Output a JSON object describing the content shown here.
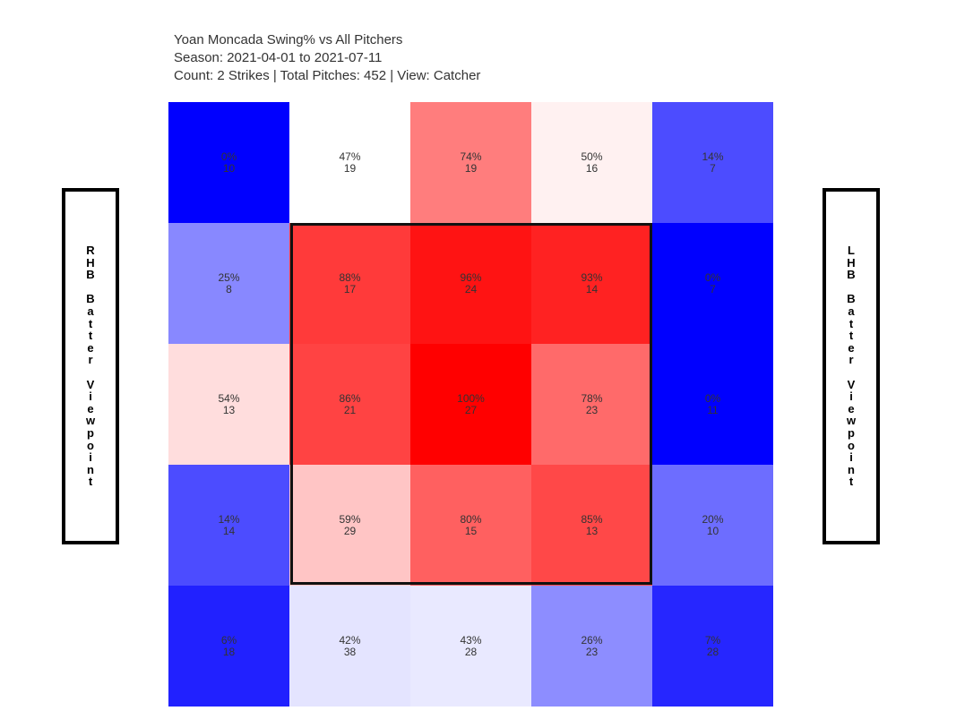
{
  "header": {
    "line1": "Yoan Moncada Swing% vs All Pitchers",
    "line2": "Season: 2021-04-01 to 2021-07-11",
    "line3": "Count: 2 Strikes | Total Pitches: 452 | View: Catcher"
  },
  "left_label": "RHB Batter Viewpoint",
  "right_label": "LHB Batter Viewpoint",
  "colors": {
    "high": "#ff0000",
    "mid": "#ffffff",
    "low": "#0000ff",
    "zone_border": "#111111"
  },
  "chart_data": {
    "type": "heatmap",
    "title": "Yoan Moncada Swing% vs All Pitchers",
    "rows": 5,
    "cols": 5,
    "color_scale": {
      "min": 0,
      "mid": 47,
      "max": 100
    },
    "cells": [
      [
        {
          "pct": "0%",
          "n": "10",
          "v": 0
        },
        {
          "pct": "47%",
          "n": "19",
          "v": 47
        },
        {
          "pct": "74%",
          "n": "19",
          "v": 74
        },
        {
          "pct": "50%",
          "n": "16",
          "v": 50
        },
        {
          "pct": "14%",
          "n": "7",
          "v": 14
        }
      ],
      [
        {
          "pct": "25%",
          "n": "8",
          "v": 25
        },
        {
          "pct": "88%",
          "n": "17",
          "v": 88
        },
        {
          "pct": "96%",
          "n": "24",
          "v": 96
        },
        {
          "pct": "93%",
          "n": "14",
          "v": 93
        },
        {
          "pct": "0%",
          "n": "7",
          "v": 0
        }
      ],
      [
        {
          "pct": "54%",
          "n": "13",
          "v": 54
        },
        {
          "pct": "86%",
          "n": "21",
          "v": 86
        },
        {
          "pct": "100%",
          "n": "27",
          "v": 100
        },
        {
          "pct": "78%",
          "n": "23",
          "v": 78
        },
        {
          "pct": "0%",
          "n": "11",
          "v": 0
        }
      ],
      [
        {
          "pct": "14%",
          "n": "14",
          "v": 14
        },
        {
          "pct": "59%",
          "n": "29",
          "v": 59
        },
        {
          "pct": "80%",
          "n": "15",
          "v": 80
        },
        {
          "pct": "85%",
          "n": "13",
          "v": 85
        },
        {
          "pct": "20%",
          "n": "10",
          "v": 20
        }
      ],
      [
        {
          "pct": "6%",
          "n": "18",
          "v": 6
        },
        {
          "pct": "42%",
          "n": "38",
          "v": 42
        },
        {
          "pct": "43%",
          "n": "28",
          "v": 43
        },
        {
          "pct": "26%",
          "n": "23",
          "v": 26
        },
        {
          "pct": "7%",
          "n": "28",
          "v": 7
        }
      ]
    ]
  }
}
